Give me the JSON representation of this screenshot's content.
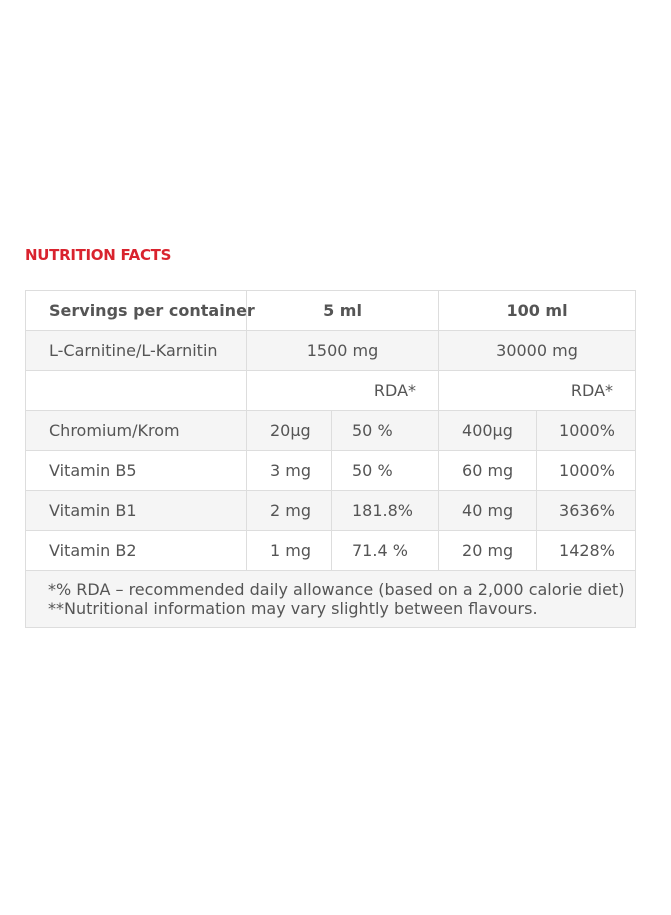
{
  "title": "NUTRITION FACTS",
  "header": {
    "label": "Servings per container",
    "col1": "5 ml",
    "col2": "100 ml"
  },
  "carnitine": {
    "label": "L-Carnitine/L-Karnitin",
    "val1": "1500 mg",
    "val2": "30000 mg"
  },
  "rda_label_1": "RDA*",
  "rda_label_2": "RDA*",
  "rows": [
    {
      "label": "Chromium/Krom",
      "amount1": "20µg",
      "rda1": "50 %",
      "amount2": "400µg",
      "rda2": "1000%"
    },
    {
      "label": "Vitamin B5",
      "amount1": "3 mg",
      "rda1": "50 %",
      "amount2": "60 mg",
      "rda2": "1000%"
    },
    {
      "label": "Vitamin B1",
      "amount1": "2 mg",
      "rda1": "181.8%",
      "amount2": "40 mg",
      "rda2": "3636%"
    },
    {
      "label": "Vitamin B2",
      "amount1": "1 mg",
      "rda1": "71.4 %",
      "amount2": "20 mg",
      "rda2": "1428%"
    }
  ],
  "footnotes": [
    "*% RDA – recommended daily allowance (based on a 2,000 calorie diet)",
    "**Nutritional information may vary slightly between flavours."
  ]
}
